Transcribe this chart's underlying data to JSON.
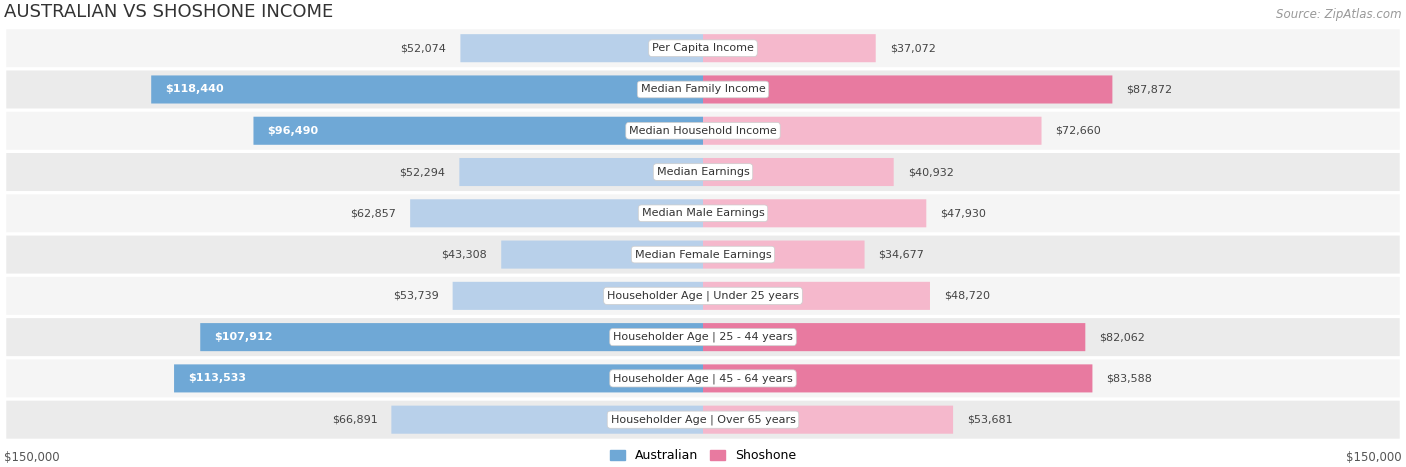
{
  "title": "AUSTRALIAN VS SHOSHONE INCOME",
  "source": "Source: ZipAtlas.com",
  "max_value": 150000,
  "categories": [
    "Per Capita Income",
    "Median Family Income",
    "Median Household Income",
    "Median Earnings",
    "Median Male Earnings",
    "Median Female Earnings",
    "Householder Age | Under 25 years",
    "Householder Age | 25 - 44 years",
    "Householder Age | 45 - 64 years",
    "Householder Age | Over 65 years"
  ],
  "australian_values": [
    52074,
    118440,
    96490,
    52294,
    62857,
    43308,
    53739,
    107912,
    113533,
    66891
  ],
  "shoshone_values": [
    37072,
    87872,
    72660,
    40932,
    47930,
    34677,
    48720,
    82062,
    83588,
    53681
  ],
  "australian_labels": [
    "$52,074",
    "$118,440",
    "$96,490",
    "$52,294",
    "$62,857",
    "$43,308",
    "$53,739",
    "$107,912",
    "$113,533",
    "$66,891"
  ],
  "shoshone_labels": [
    "$37,072",
    "$87,872",
    "$72,660",
    "$40,932",
    "$47,930",
    "$34,677",
    "$48,720",
    "$82,062",
    "$83,588",
    "$53,681"
  ],
  "australian_color_light": "#b8d0ea",
  "australian_color_dark": "#6fa8d6",
  "shoshone_color_light": "#f5b8cc",
  "shoshone_color_dark": "#e87aa0",
  "row_bg_even": "#f5f5f5",
  "row_bg_odd": "#ebebeb",
  "aus_inside_threshold": 80000,
  "sho_inside_threshold": 999999,
  "xlabel_left": "$150,000",
  "xlabel_right": "$150,000",
  "title_fontsize": 13,
  "source_fontsize": 8.5,
  "bar_label_fontsize": 8,
  "category_fontsize": 8
}
